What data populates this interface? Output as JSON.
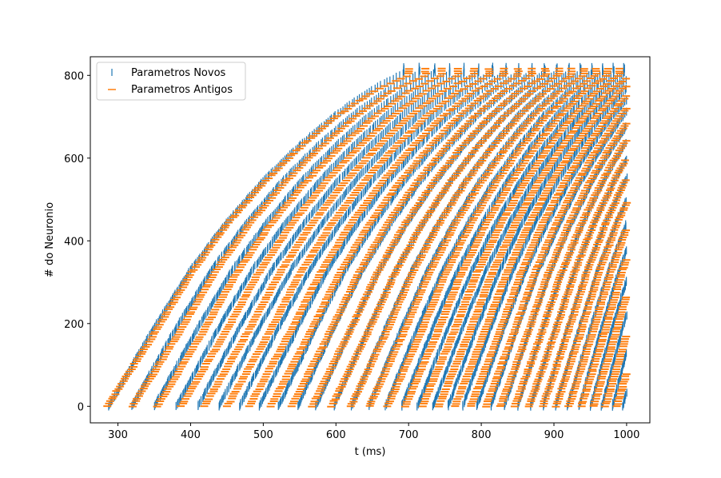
{
  "chart_data": {
    "type": "scatter",
    "title": "",
    "xlabel": "t (ms)",
    "ylabel": "# do Neuronio",
    "xlim": [
      262,
      1032
    ],
    "ylim": [
      -40,
      845
    ],
    "xticks": [
      300,
      400,
      500,
      600,
      700,
      800,
      900,
      1000
    ],
    "yticks": [
      0,
      200,
      400,
      600,
      800
    ],
    "x_tick_labels": [
      "300",
      "400",
      "500",
      "600",
      "700",
      "800",
      "900",
      "1000"
    ],
    "y_tick_labels": [
      "0",
      "200",
      "400",
      "600",
      "800"
    ],
    "legend_position": "top-left",
    "grid": false,
    "series": [
      {
        "name": "Parametros Novos",
        "marker": "|",
        "color": "#1f77b4",
        "description_points": {
          "onset_curve": [
            [
              287,
              0
            ],
            [
              350,
              190
            ],
            [
              400,
              330
            ],
            [
              450,
              445
            ],
            [
              500,
              545
            ],
            [
              550,
              630
            ],
            [
              600,
              705
            ],
            [
              650,
              765
            ],
            [
              693,
              805
            ]
          ],
          "wave_period_ms_start": 32,
          "wave_period_ms_end": 14,
          "t_end": 1000,
          "neuron_max": 820
        }
      },
      {
        "name": "Parametros Antigos",
        "marker": "_",
        "color": "#ff7f0e",
        "description_points": {
          "onset_curve": [
            [
              285,
              0
            ],
            [
              350,
              175
            ],
            [
              400,
              320
            ],
            [
              450,
              440
            ],
            [
              500,
              540
            ],
            [
              550,
              625
            ],
            [
              600,
              700
            ],
            [
              650,
              760
            ],
            [
              700,
              800
            ]
          ],
          "wave_period_ms_start": 35,
          "wave_period_ms_end": 15,
          "t_end": 1000,
          "neuron_max": 820
        }
      }
    ]
  }
}
